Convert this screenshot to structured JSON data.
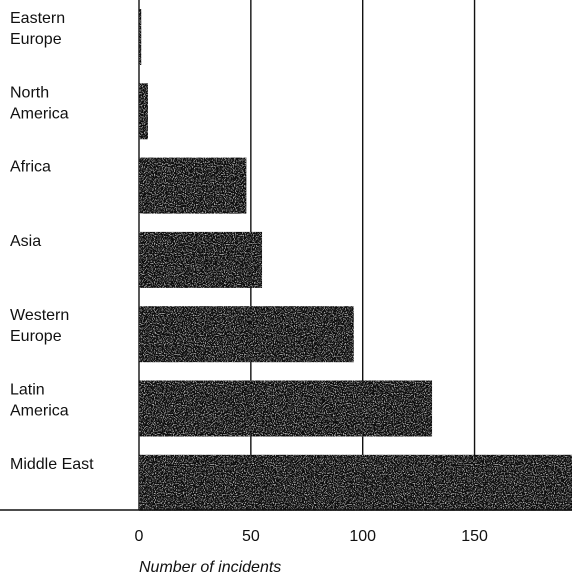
{
  "chart_data": {
    "type": "bar",
    "orientation": "horizontal",
    "categories": [
      [
        "Eastern",
        "Europe"
      ],
      [
        "North",
        "America"
      ],
      [
        "Africa"
      ],
      [
        "Asia"
      ],
      [
        "Western",
        "Europe"
      ],
      [
        "Latin",
        "America"
      ],
      [
        "Middle East"
      ]
    ],
    "values": [
      1,
      4,
      48,
      55,
      96,
      131,
      195
    ],
    "xlabel": "Number of incidents",
    "xticks": [
      0,
      50,
      100,
      150
    ],
    "xlim": [
      0,
      192
    ],
    "grid": "vertical lines at ticks",
    "bar_color": "#111111"
  }
}
